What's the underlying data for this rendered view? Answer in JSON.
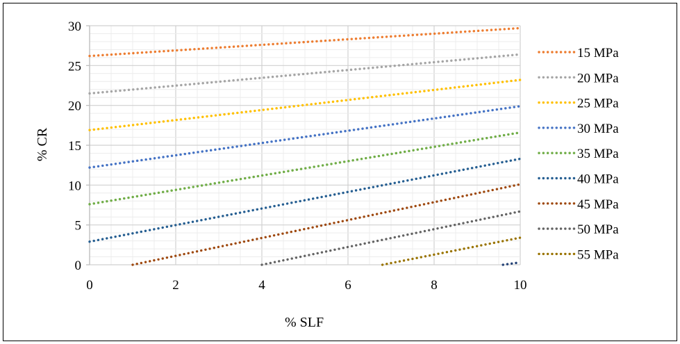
{
  "chart_data": {
    "type": "line",
    "title": "",
    "xlabel": "% SLF",
    "ylabel": "% CR",
    "xlim": [
      0,
      10
    ],
    "ylim": [
      0,
      30
    ],
    "x_ticks": [
      "0",
      "2",
      "4",
      "6",
      "8",
      "10"
    ],
    "y_ticks": [
      "0",
      "5",
      "10",
      "15",
      "20",
      "25",
      "30"
    ],
    "grid": true,
    "line_style": "dotted",
    "legend_position": "right",
    "series": [
      {
        "name": "15 MPa",
        "color": "#ED7D31",
        "x": [
          0,
          10
        ],
        "y": [
          26.2,
          29.7
        ]
      },
      {
        "name": "20 MPa",
        "color": "#A5A5A5",
        "x": [
          0,
          10
        ],
        "y": [
          21.5,
          26.4
        ]
      },
      {
        "name": "25 MPa",
        "color": "#FFC000",
        "x": [
          0,
          10
        ],
        "y": [
          16.9,
          23.2
        ]
      },
      {
        "name": "30 MPa",
        "color": "#4472C4",
        "x": [
          0,
          10
        ],
        "y": [
          12.2,
          19.9
        ]
      },
      {
        "name": "35 MPa",
        "color": "#70AD47",
        "x": [
          0,
          10
        ],
        "y": [
          7.6,
          16.6
        ]
      },
      {
        "name": "40 MPa",
        "color": "#255E91",
        "x": [
          0,
          10
        ],
        "y": [
          2.9,
          13.3
        ]
      },
      {
        "name": "45 MPa",
        "color": "#9E480E",
        "x": [
          1.0,
          10
        ],
        "y": [
          0,
          10.1
        ]
      },
      {
        "name": "50 MPa",
        "color": "#636363",
        "x": [
          4.0,
          10
        ],
        "y": [
          0,
          6.7
        ]
      },
      {
        "name": "55 MPa",
        "color": "#997300",
        "x": [
          6.8,
          10
        ],
        "y": [
          0,
          3.4
        ]
      },
      {
        "name": "",
        "color": "#264478",
        "x": [
          9.6,
          10
        ],
        "y": [
          0,
          0.3
        ]
      }
    ]
  }
}
